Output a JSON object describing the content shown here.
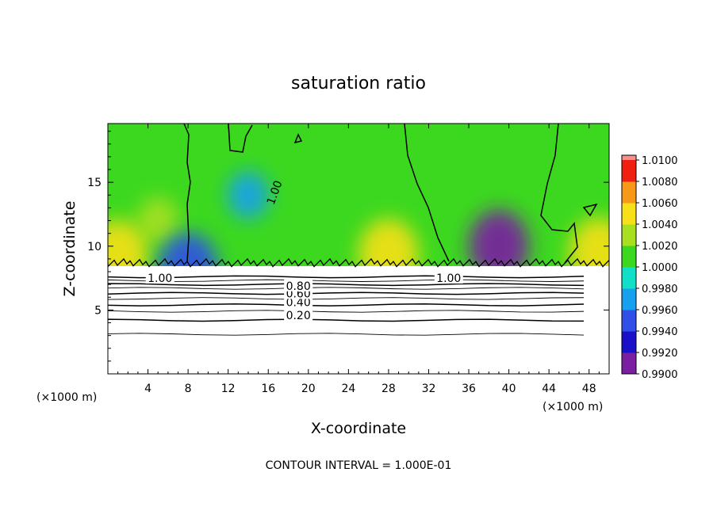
{
  "chart_data": {
    "type": "heatmap",
    "title": "saturation ratio",
    "xlabel": "X-coordinate",
    "ylabel": "Z-coordinate",
    "x_unit_left": "(×1000 m)",
    "x_unit_right": "(×1000 m)",
    "xlim": [
      0,
      50
    ],
    "ylim": [
      0,
      19.6
    ],
    "x_ticks": [
      4,
      8,
      12,
      16,
      20,
      24,
      28,
      32,
      36,
      40,
      44,
      48
    ],
    "x_tick_labels": [
      "4",
      "8",
      "12",
      "16",
      "20",
      "24",
      "28",
      "32",
      "36",
      "40",
      "44",
      "48"
    ],
    "y_ticks": [
      5,
      10,
      15
    ],
    "y_tick_labels": [
      "5",
      "10",
      "15"
    ],
    "colorbar": {
      "levels": [
        0.99,
        0.992,
        0.994,
        0.996,
        0.998,
        1.0,
        1.002,
        1.004,
        1.006,
        1.008,
        1.01
      ],
      "labels": [
        "0.9900",
        "0.9920",
        "0.9940",
        "0.9960",
        "0.9980",
        "1.0000",
        "1.0020",
        "1.0040",
        "1.0060",
        "1.0080",
        "1.0100"
      ],
      "colors": [
        "#7a1fa2",
        "#1a10c8",
        "#2f4fe8",
        "#18a0f0",
        "#10e0c8",
        "#3cd820",
        "#a8e020",
        "#f8e018",
        "#f89818",
        "#f02010",
        "#f89090"
      ]
    },
    "contour_levels": [
      0.2,
      0.4,
      0.6,
      0.8,
      1.0
    ],
    "contour_labels": [
      "0.20",
      "0.40",
      "0.60",
      "0.80",
      "1.00"
    ],
    "contour_interval_text": "CONTOUR INTERVAL = 1.000E-01",
    "regions": {
      "upper_field_value": 1.0,
      "cloud_base_z": 8.7,
      "high_pockets": [
        {
          "x": 5,
          "z": 12,
          "value": 1.003
        },
        {
          "x": 1,
          "z": 9.2,
          "value": 1.005
        },
        {
          "x": 49,
          "z": 9.4,
          "value": 1.005
        },
        {
          "x": 28,
          "z": 9.3,
          "value": 1.004
        }
      ],
      "low_pockets": [
        {
          "x": 39,
          "z": 10,
          "value": 0.991
        },
        {
          "x": 14,
          "z": 14,
          "value": 0.997
        },
        {
          "x": 8,
          "z": 8.2,
          "value": 0.994
        }
      ]
    }
  }
}
